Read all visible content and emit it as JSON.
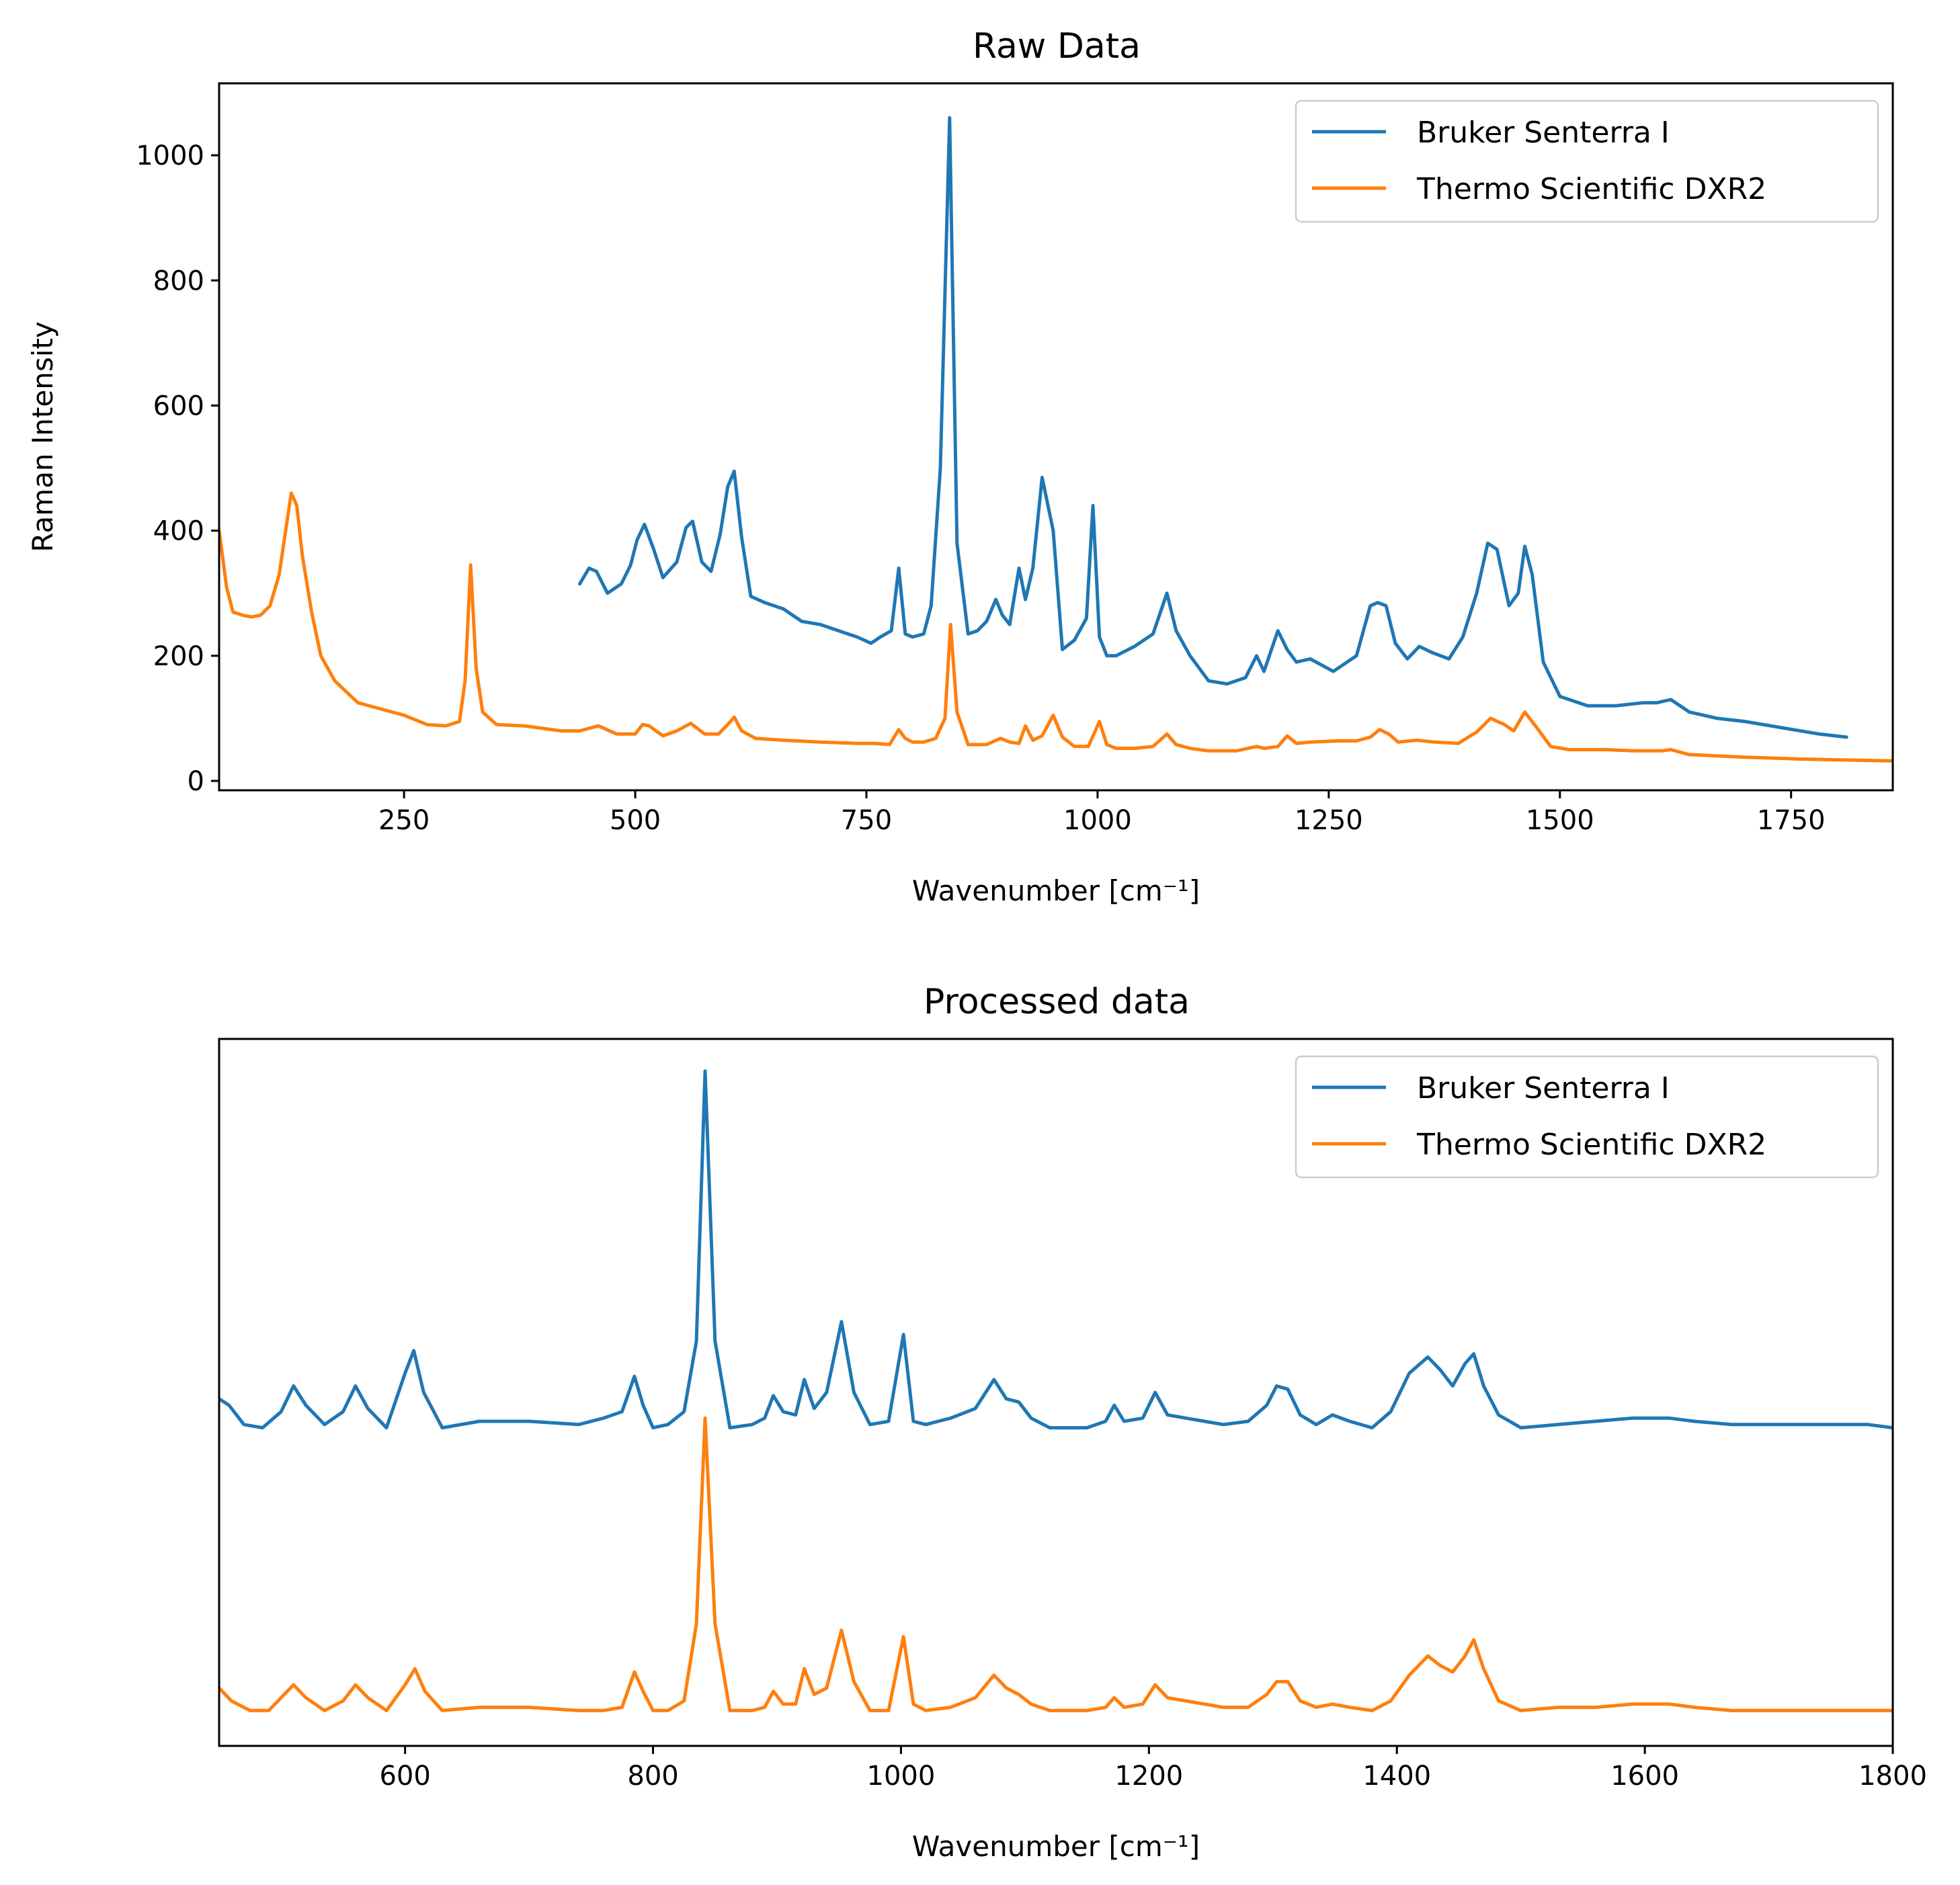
{
  "chart_data": [
    {
      "type": "line",
      "title": "Raw Data",
      "xlabel": "Wavenumber [cm⁻¹]",
      "ylabel": "Raman Intensity",
      "xlim": [
        50,
        1860
      ],
      "ylim": [
        -15,
        1115
      ],
      "xticks": [
        "250",
        "500",
        "750",
        "1000",
        "1250",
        "1500",
        "1750"
      ],
      "yticks": [
        "0",
        "200",
        "400",
        "600",
        "800",
        "1000"
      ],
      "grid": false,
      "legend": "top-right",
      "series": [
        {
          "name": "Bruker Senterra I",
          "color": "#1f77b4",
          "x": [
            440,
            450,
            458,
            470,
            485,
            495,
            502,
            510,
            520,
            530,
            545,
            555,
            562,
            572,
            582,
            592,
            600,
            607,
            615,
            625,
            640,
            660,
            680,
            700,
            720,
            740,
            755,
            765,
            777,
            785,
            792,
            800,
            812,
            820,
            830,
            840,
            848,
            860,
            870,
            880,
            890,
            897,
            905,
            915,
            922,
            930,
            940,
            952,
            962,
            975,
            988,
            995,
            1002,
            1010,
            1020,
            1040,
            1060,
            1075,
            1085,
            1100,
            1120,
            1140,
            1160,
            1172,
            1180,
            1195,
            1205,
            1215,
            1230,
            1255,
            1280,
            1295,
            1303,
            1312,
            1322,
            1335,
            1348,
            1362,
            1380,
            1395,
            1410,
            1422,
            1432,
            1445,
            1455,
            1462,
            1470,
            1482,
            1500,
            1530,
            1560,
            1590,
            1605,
            1620,
            1640,
            1670,
            1700,
            1740,
            1780,
            1810
          ],
          "y": [
            315,
            340,
            335,
            300,
            315,
            345,
            385,
            410,
            370,
            325,
            350,
            405,
            415,
            350,
            335,
            395,
            470,
            495,
            390,
            295,
            285,
            275,
            255,
            250,
            240,
            230,
            220,
            230,
            240,
            340,
            235,
            230,
            235,
            280,
            500,
            1060,
            380,
            235,
            240,
            255,
            290,
            265,
            250,
            340,
            290,
            340,
            485,
            400,
            210,
            225,
            260,
            440,
            230,
            200,
            200,
            215,
            235,
            300,
            240,
            200,
            160,
            155,
            165,
            200,
            175,
            240,
            210,
            190,
            195,
            175,
            200,
            280,
            285,
            280,
            220,
            195,
            215,
            205,
            195,
            230,
            300,
            380,
            370,
            280,
            300,
            375,
            330,
            190,
            135,
            120,
            120,
            125,
            125,
            130,
            110,
            100,
            95,
            85,
            75,
            70
          ]
        },
        {
          "name": "Thermo Scientific DXR2",
          "color": "#ff7f0e",
          "x": [
            50,
            58,
            65,
            75,
            85,
            95,
            105,
            115,
            122,
            128,
            134,
            140,
            150,
            160,
            175,
            200,
            225,
            250,
            275,
            295,
            310,
            316,
            322,
            328,
            335,
            350,
            380,
            420,
            440,
            460,
            480,
            500,
            508,
            515,
            530,
            545,
            560,
            575,
            590,
            600,
            607,
            615,
            630,
            660,
            700,
            740,
            760,
            775,
            785,
            792,
            800,
            812,
            825,
            835,
            841,
            848,
            860,
            880,
            895,
            905,
            915,
            922,
            930,
            940,
            952,
            962,
            975,
            990,
            1002,
            1010,
            1020,
            1040,
            1060,
            1075,
            1085,
            1100,
            1120,
            1150,
            1172,
            1180,
            1195,
            1205,
            1215,
            1230,
            1260,
            1280,
            1295,
            1305,
            1315,
            1325,
            1345,
            1365,
            1390,
            1410,
            1425,
            1440,
            1450,
            1462,
            1475,
            1490,
            1510,
            1550,
            1580,
            1610,
            1620,
            1640,
            1700,
            1760,
            1820,
            1860
          ],
          "y": [
            400,
            310,
            270,
            265,
            262,
            265,
            280,
            330,
            400,
            460,
            440,
            360,
            270,
            200,
            160,
            125,
            115,
            105,
            90,
            88,
            95,
            160,
            345,
            180,
            110,
            90,
            88,
            80,
            80,
            88,
            75,
            75,
            90,
            88,
            72,
            80,
            92,
            75,
            75,
            90,
            102,
            80,
            68,
            65,
            62,
            60,
            60,
            58,
            82,
            68,
            62,
            62,
            68,
            100,
            250,
            110,
            58,
            58,
            68,
            62,
            60,
            88,
            65,
            72,
            105,
            70,
            55,
            55,
            95,
            58,
            52,
            52,
            55,
            75,
            58,
            52,
            48,
            48,
            55,
            52,
            55,
            72,
            60,
            62,
            64,
            64,
            70,
            82,
            75,
            62,
            65,
            62,
            60,
            78,
            100,
            90,
            80,
            110,
            85,
            55,
            50,
            50,
            48,
            48,
            50,
            42,
            38,
            35,
            33,
            32
          ]
        }
      ]
    },
    {
      "type": "line",
      "title": "Processed data",
      "xlabel": "Wavenumber [cm⁻¹]",
      "ylabel": "",
      "xlim": [
        450,
        1800
      ],
      "ylim": [
        -0.05,
        1.05
      ],
      "xticks": [
        "600",
        "800",
        "1000",
        "1200",
        "1400",
        "1600",
        "1800"
      ],
      "yticks": [],
      "grid": false,
      "legend": "top-right",
      "series": [
        {
          "name": "Bruker Senterra I",
          "color": "#1f77b4",
          "x": [
            450,
            458,
            470,
            485,
            500,
            510,
            520,
            535,
            550,
            560,
            570,
            585,
            600,
            607,
            615,
            630,
            660,
            700,
            740,
            760,
            775,
            785,
            792,
            800,
            812,
            825,
            835,
            842,
            850,
            862,
            880,
            890,
            897,
            905,
            915,
            922,
            930,
            940,
            952,
            962,
            975,
            990,
            1002,
            1010,
            1020,
            1040,
            1060,
            1075,
            1085,
            1095,
            1105,
            1120,
            1150,
            1165,
            1172,
            1180,
            1195,
            1205,
            1215,
            1230,
            1260,
            1280,
            1295,
            1303,
            1312,
            1322,
            1335,
            1348,
            1362,
            1380,
            1395,
            1410,
            1425,
            1435,
            1445,
            1455,
            1462,
            1470,
            1482,
            1500,
            1530,
            1560,
            1590,
            1620,
            1640,
            1670,
            1700,
            1740,
            1780,
            1800
          ],
          "y": [
            0.49,
            0.48,
            0.45,
            0.445,
            0.47,
            0.51,
            0.48,
            0.45,
            0.47,
            0.51,
            0.475,
            0.445,
            0.53,
            0.565,
            0.5,
            0.445,
            0.455,
            0.455,
            0.45,
            0.46,
            0.47,
            0.525,
            0.48,
            0.445,
            0.45,
            0.47,
            0.58,
            1.0,
            0.58,
            0.445,
            0.45,
            0.46,
            0.495,
            0.47,
            0.465,
            0.52,
            0.475,
            0.5,
            0.61,
            0.5,
            0.45,
            0.455,
            0.59,
            0.455,
            0.45,
            0.46,
            0.475,
            0.52,
            0.49,
            0.485,
            0.46,
            0.445,
            0.445,
            0.455,
            0.48,
            0.455,
            0.46,
            0.5,
            0.465,
            0.46,
            0.45,
            0.455,
            0.48,
            0.51,
            0.505,
            0.465,
            0.45,
            0.465,
            0.455,
            0.445,
            0.47,
            0.53,
            0.555,
            0.535,
            0.51,
            0.545,
            0.56,
            0.51,
            0.465,
            0.445,
            0.45,
            0.455,
            0.46,
            0.46,
            0.455,
            0.45,
            0.45,
            0.45,
            0.45,
            0.445
          ]
        },
        {
          "name": "Thermo Scientific DXR2",
          "color": "#ff7f0e",
          "x": [
            450,
            460,
            475,
            490,
            500,
            510,
            520,
            535,
            550,
            560,
            570,
            585,
            600,
            608,
            616,
            630,
            660,
            700,
            740,
            760,
            775,
            785,
            792,
            800,
            812,
            825,
            835,
            842,
            850,
            862,
            880,
            890,
            897,
            905,
            915,
            922,
            930,
            940,
            952,
            962,
            975,
            990,
            1002,
            1010,
            1020,
            1040,
            1060,
            1075,
            1085,
            1095,
            1105,
            1120,
            1150,
            1165,
            1172,
            1180,
            1195,
            1205,
            1215,
            1230,
            1260,
            1280,
            1295,
            1303,
            1312,
            1322,
            1335,
            1348,
            1362,
            1380,
            1395,
            1410,
            1425,
            1435,
            1445,
            1455,
            1462,
            1470,
            1482,
            1500,
            1530,
            1560,
            1590,
            1620,
            1640,
            1670,
            1700,
            1740,
            1780,
            1800
          ],
          "y": [
            0.04,
            0.02,
            0.005,
            0.005,
            0.025,
            0.045,
            0.025,
            0.005,
            0.02,
            0.045,
            0.025,
            0.005,
            0.045,
            0.07,
            0.035,
            0.005,
            0.01,
            0.01,
            0.005,
            0.005,
            0.01,
            0.065,
            0.035,
            0.005,
            0.005,
            0.02,
            0.14,
            0.46,
            0.14,
            0.005,
            0.005,
            0.01,
            0.035,
            0.015,
            0.015,
            0.07,
            0.03,
            0.04,
            0.13,
            0.05,
            0.005,
            0.005,
            0.12,
            0.015,
            0.005,
            0.01,
            0.025,
            0.06,
            0.04,
            0.03,
            0.015,
            0.005,
            0.005,
            0.01,
            0.025,
            0.01,
            0.015,
            0.045,
            0.025,
            0.02,
            0.01,
            0.01,
            0.03,
            0.05,
            0.05,
            0.02,
            0.01,
            0.015,
            0.01,
            0.005,
            0.02,
            0.06,
            0.09,
            0.075,
            0.065,
            0.09,
            0.115,
            0.07,
            0.02,
            0.005,
            0.01,
            0.01,
            0.015,
            0.015,
            0.01,
            0.005,
            0.005,
            0.005,
            0.005,
            0.005
          ]
        }
      ]
    }
  ]
}
